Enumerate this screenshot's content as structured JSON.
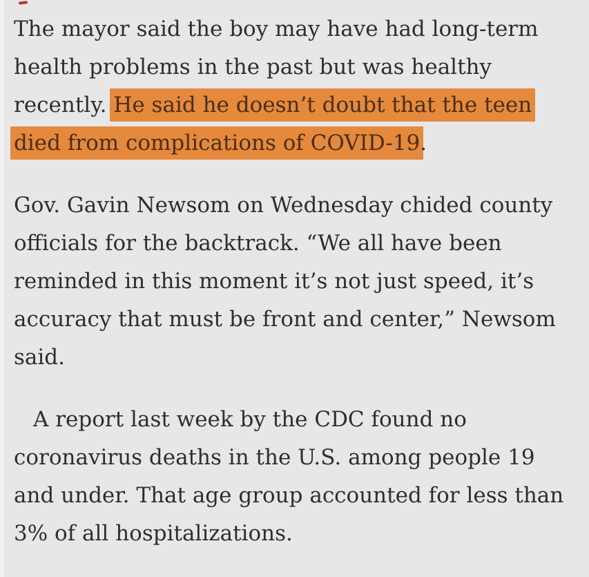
{
  "colors": {
    "bg": "#e8e7e7",
    "text": "#2f2e2c",
    "highlight": "#e5893c",
    "text-on-highlight": "#4a2e12",
    "red-mark": "#b51f1f",
    "edge": "#f4f3f3"
  },
  "article": {
    "paragraphs": [
      {
        "indent_first_line": false,
        "lines": [
          [
            {
              "text": "The mayor said the boy may have had long-term",
              "highlight": false
            }
          ],
          [
            {
              "text": "health problems in the past but was healthy",
              "highlight": false
            }
          ],
          [
            {
              "text": "recently. ",
              "highlight": false
            },
            {
              "text": "He said he doesn’t doubt that the teen",
              "highlight": true
            }
          ],
          [
            {
              "text": "died from complications of COVID-19",
              "highlight": true
            },
            {
              "text": ".",
              "highlight": false
            }
          ]
        ]
      },
      {
        "indent_first_line": false,
        "lines": [
          [
            {
              "text": "Gov. Gavin Newsom on Wednesday chided county",
              "highlight": false
            }
          ],
          [
            {
              "text": "officials for the backtrack. “We all have been",
              "highlight": false
            }
          ],
          [
            {
              "text": "reminded in this moment it’s not just speed, it’s",
              "highlight": false
            }
          ],
          [
            {
              "text": "accuracy that must be front and center,” Newsom",
              "highlight": false
            }
          ],
          [
            {
              "text": "said.",
              "highlight": false
            }
          ]
        ]
      },
      {
        "indent_first_line": true,
        "lines": [
          [
            {
              "text": "A report last week by the CDC found no",
              "highlight": false
            }
          ],
          [
            {
              "text": "coronavirus deaths in the U.S. among people 19",
              "highlight": false
            }
          ],
          [
            {
              "text": "and under. That age group accounted for less than",
              "highlight": false
            }
          ],
          [
            {
              "text": "3% of all hospitalizations.",
              "highlight": false
            }
          ]
        ]
      }
    ]
  }
}
